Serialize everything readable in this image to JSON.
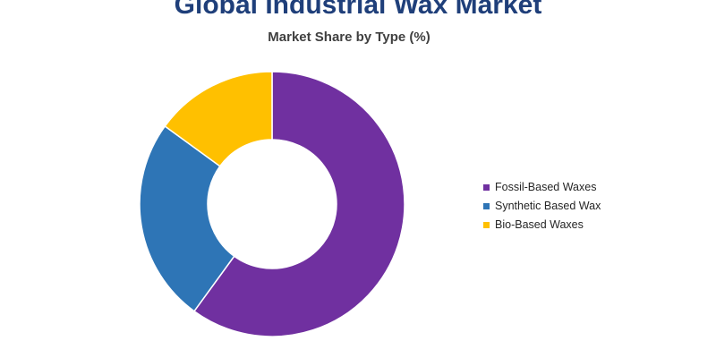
{
  "chart_data": {
    "type": "pie",
    "donut": true,
    "title": "Global Industrial Wax Market",
    "subtitle": "Market Share by Type (%)",
    "categories": [
      "Fossil-Based Waxes",
      "Synthetic Based Wax",
      "Bio-Based Waxes"
    ],
    "values": [
      60,
      25,
      15
    ],
    "colors": [
      "#7030a0",
      "#2e75b6",
      "#ffc000"
    ],
    "legend_position": "right"
  }
}
